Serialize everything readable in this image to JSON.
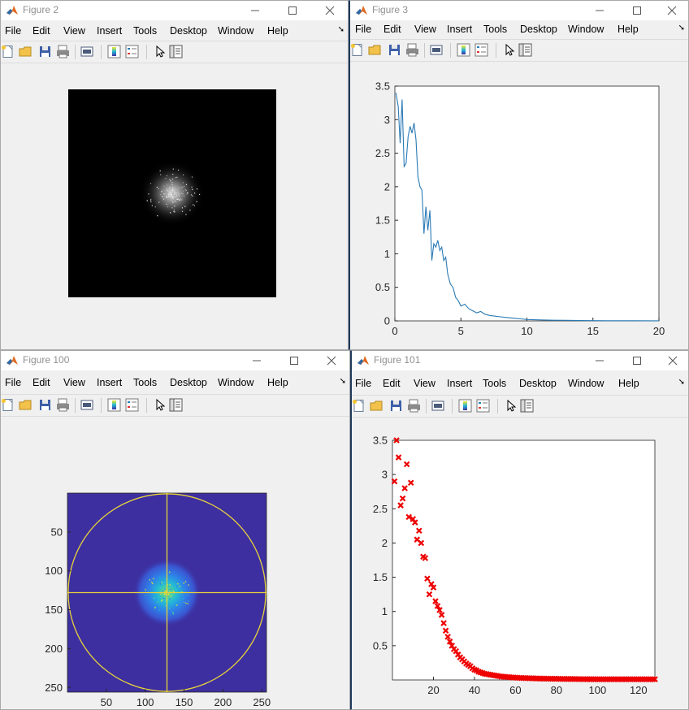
{
  "menu_labels": [
    "File",
    "Edit",
    "View",
    "Insert",
    "Tools",
    "Desktop",
    "Window",
    "Help"
  ],
  "windows": {
    "w2": {
      "title": "Figure 2"
    },
    "w3": {
      "title": "Figure 3"
    },
    "w100": {
      "title": "Figure 100"
    },
    "w101": {
      "title": "Figure 101"
    }
  },
  "toolbar_icons": [
    "new-figure-icon",
    "open-file-icon",
    "save-icon",
    "print-icon",
    "link-plot-icon",
    "insert-colorbar-icon",
    "insert-legend-icon",
    "edit-plot-arrow-icon",
    "property-inspector-icon"
  ],
  "colors": {
    "line_series": "#2a7ab5",
    "marker_series": "#ee0000",
    "crosshair": "#e8d33a",
    "heatmap_bg": "#3d2fa0"
  },
  "chart_data": [
    {
      "figure": "Figure 3",
      "type": "line",
      "xlim": [
        0,
        20
      ],
      "ylim": [
        0,
        3.5
      ],
      "xticks": [
        "0",
        "5",
        "10",
        "15",
        "20"
      ],
      "yticks": [
        "0",
        "0.5",
        "1",
        "1.5",
        "2",
        "2.5",
        "3",
        "3.5"
      ],
      "grid": false,
      "series": [
        {
          "x": [
            0.08,
            0.25,
            0.4,
            0.55,
            0.7,
            0.85,
            1.0,
            1.15,
            1.3,
            1.45,
            1.6,
            1.75,
            1.9,
            2.05,
            2.2,
            2.35,
            2.5,
            2.65,
            2.8,
            2.95,
            3.1,
            3.25,
            3.4,
            3.55,
            3.7,
            3.85,
            4.0,
            4.2,
            4.4,
            4.6,
            4.8,
            5.0,
            5.3,
            5.6,
            5.9,
            6.2,
            6.5,
            6.8,
            7.2,
            7.6,
            8.0,
            8.5,
            9.0,
            9.5,
            10.0,
            11.0,
            12.0,
            13.0,
            14.0,
            16.0,
            18.0,
            20.0
          ],
          "y": [
            3.4,
            3.2,
            2.65,
            3.3,
            2.3,
            2.35,
            2.75,
            2.9,
            2.8,
            2.95,
            2.7,
            2.15,
            2.0,
            1.95,
            1.3,
            1.7,
            1.35,
            1.65,
            0.9,
            1.15,
            1.1,
            1.2,
            1.05,
            1.1,
            0.9,
            0.95,
            0.7,
            0.55,
            0.5,
            0.35,
            0.3,
            0.22,
            0.25,
            0.18,
            0.15,
            0.12,
            0.14,
            0.1,
            0.08,
            0.07,
            0.06,
            0.05,
            0.04,
            0.03,
            0.02,
            0.015,
            0.01,
            0.008,
            0.005,
            0.003,
            0.002,
            0.001
          ]
        }
      ]
    },
    {
      "figure": "Figure 100",
      "type": "heatmap",
      "xlim": [
        0,
        256
      ],
      "ylim": [
        256,
        0
      ],
      "xticks": [
        "50",
        "100",
        "150",
        "200",
        "250"
      ],
      "yticks": [
        "50",
        "100",
        "150",
        "200",
        "250"
      ],
      "overlay": {
        "circle_center": [
          128,
          128
        ],
        "circle_radius": 127,
        "crosshair": [
          128,
          128
        ]
      }
    },
    {
      "figure": "Figure 101",
      "type": "scatter",
      "marker": "x",
      "xlim": [
        0,
        128
      ],
      "ylim": [
        0,
        3.5
      ],
      "xticks": [
        "20",
        "40",
        "60",
        "80",
        "100",
        "120"
      ],
      "yticks": [
        "0.5",
        "1",
        "1.5",
        "2",
        "2.5",
        "3",
        "3.5"
      ],
      "series": [
        {
          "y": [
            2.9,
            3.5,
            3.25,
            2.55,
            2.65,
            2.8,
            3.15,
            2.38,
            2.88,
            2.35,
            2.3,
            2.05,
            2.18,
            2.0,
            1.8,
            1.78,
            1.48,
            1.25,
            1.4,
            1.35,
            1.15,
            1.08,
            1.02,
            0.95,
            0.83,
            0.72,
            0.63,
            0.56,
            0.5,
            0.45,
            0.42,
            0.37,
            0.33,
            0.3,
            0.27,
            0.24,
            0.22,
            0.2,
            0.17,
            0.15,
            0.14,
            0.12,
            0.11,
            0.1,
            0.09,
            0.085,
            0.08,
            0.075,
            0.07,
            0.065,
            0.06,
            0.055,
            0.05,
            0.048,
            0.045,
            0.043,
            0.04,
            0.038,
            0.036,
            0.034,
            0.032,
            0.03,
            0.029,
            0.028,
            0.027,
            0.026,
            0.025,
            0.024,
            0.023,
            0.022,
            0.021,
            0.02,
            0.02,
            0.019,
            0.019,
            0.018,
            0.018,
            0.017,
            0.017,
            0.016,
            0.016,
            0.015,
            0.015,
            0.015,
            0.014,
            0.014,
            0.014,
            0.013,
            0.013,
            0.013,
            0.012,
            0.012,
            0.012,
            0.012,
            0.011,
            0.011,
            0.011,
            0.011,
            0.01,
            0.01,
            0.01,
            0.01,
            0.01,
            0.01,
            0.01,
            0.01,
            0.01,
            0.01,
            0.01,
            0.01,
            0.01,
            0.01,
            0.01,
            0.01,
            0.01,
            0.01,
            0.01,
            0.01,
            0.01,
            0.01,
            0.01,
            0.01,
            0.01,
            0.01,
            0.01,
            0.01,
            0.01,
            0.01
          ]
        }
      ]
    }
  ]
}
